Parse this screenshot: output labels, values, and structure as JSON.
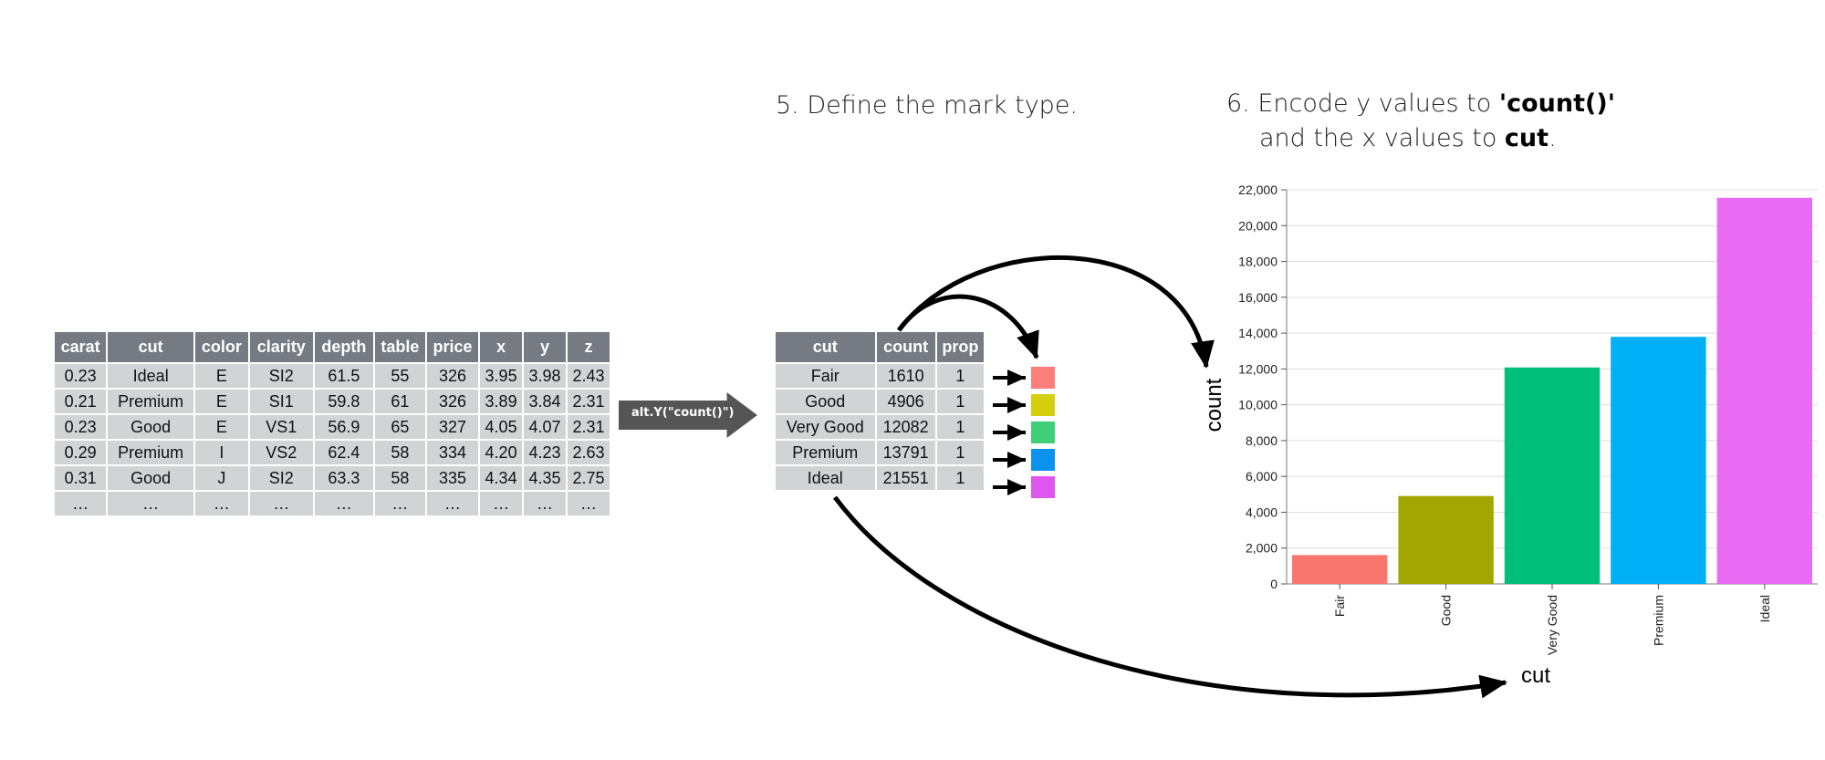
{
  "step5": {
    "title": "5. Define the mark type."
  },
  "step6": {
    "line1_prefix": "6. Encode  y values to ",
    "line1_bold": "'count()'",
    "line2_prefix": "and the x values to ",
    "line2_bold": "cut",
    "line2_suffix": "."
  },
  "transform_label": "alt.Y(\"count()\")",
  "diamonds": {
    "columns": [
      "carat",
      "cut",
      "color",
      "clarity",
      "depth",
      "table",
      "price",
      "x",
      "y",
      "z"
    ],
    "rows": [
      [
        "0.23",
        "Ideal",
        "E",
        "SI2",
        "61.5",
        "55",
        "326",
        "3.95",
        "3.98",
        "2.43"
      ],
      [
        "0.21",
        "Premium",
        "E",
        "SI1",
        "59.8",
        "61",
        "326",
        "3.89",
        "3.84",
        "2.31"
      ],
      [
        "0.23",
        "Good",
        "E",
        "VS1",
        "56.9",
        "65",
        "327",
        "4.05",
        "4.07",
        "2.31"
      ],
      [
        "0.29",
        "Premium",
        "I",
        "VS2",
        "62.4",
        "58",
        "334",
        "4.20",
        "4.23",
        "2.63"
      ],
      [
        "0.31",
        "Good",
        "J",
        "SI2",
        "63.3",
        "58",
        "335",
        "4.34",
        "4.35",
        "2.75"
      ],
      [
        "…",
        "…",
        "…",
        "…",
        "…",
        "…",
        "…",
        "…",
        "…",
        "…"
      ]
    ]
  },
  "summary": {
    "columns": [
      "cut",
      "count",
      "prop"
    ],
    "rows": [
      [
        "Fair",
        "1610",
        "1"
      ],
      [
        "Good",
        "4906",
        "1"
      ],
      [
        "Very Good",
        "12082",
        "1"
      ],
      [
        "Premium",
        "13791",
        "1"
      ],
      [
        "Ideal",
        "21551",
        "1"
      ]
    ]
  },
  "colors": {
    "Fair": "#f8766d",
    "Good": "#a3a500",
    "Very Good": "#00bf7d",
    "Premium": "#00b0f6",
    "Ideal": "#e76bf3",
    "swatch_Fair": "#fa7f7b",
    "swatch_Good": "#d6cf0d",
    "swatch_Very Good": "#3fcf78",
    "swatch_Premium": "#0a92f0",
    "swatch_Ideal": "#de55f0"
  },
  "chart_data": {
    "type": "bar",
    "categories": [
      "Fair",
      "Good",
      "Very Good",
      "Premium",
      "Ideal"
    ],
    "values": [
      1610,
      4906,
      12082,
      13791,
      21551
    ],
    "xlabel": "cut",
    "ylabel": "count",
    "ylim": [
      0,
      22000
    ],
    "yticks": [
      "0",
      "2,000",
      "4,000",
      "6,000",
      "8,000",
      "10,000",
      "12,000",
      "14,000",
      "16,000",
      "18,000",
      "20,000",
      "22,000"
    ],
    "grid": true,
    "legend": "none"
  }
}
